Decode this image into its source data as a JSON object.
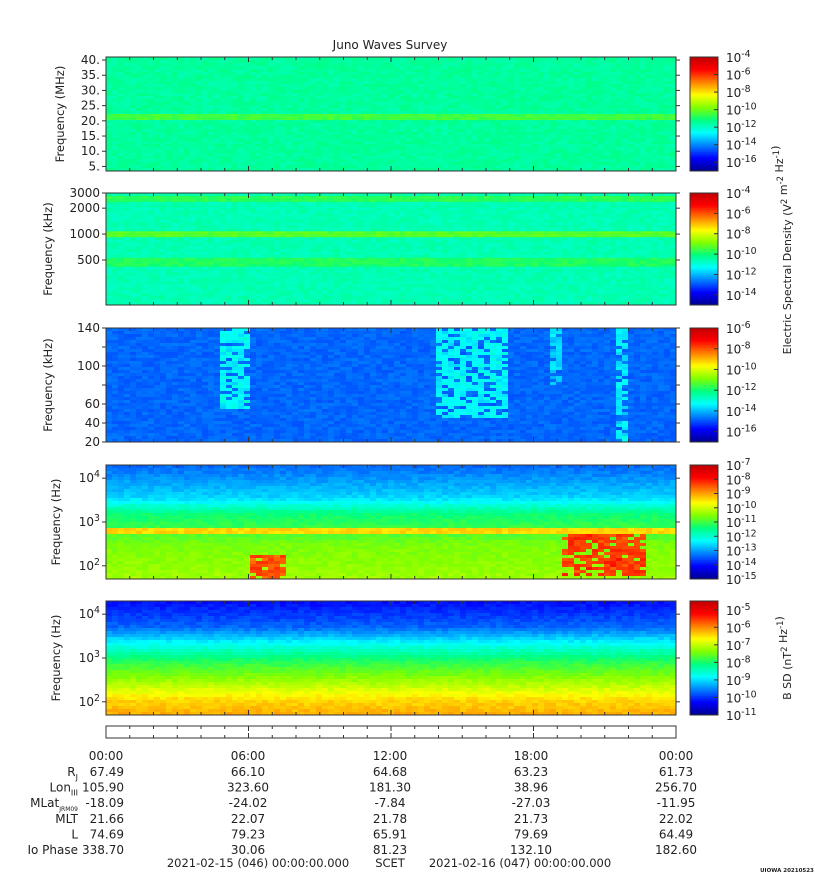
{
  "title": "Juno Waves Survey",
  "colors": {
    "jet": [
      "#00008f",
      "#0000ff",
      "#0080ff",
      "#00ffff",
      "#00ff80",
      "#80ff00",
      "#ffff00",
      "#ff8000",
      "#ff0000",
      "#c00000"
    ]
  },
  "chart_data": [
    {
      "type": "heatmap",
      "ylabel": "Frequency (MHz)",
      "yscale": "linear",
      "ylim": [
        3.5,
        41
      ],
      "yticks": [
        5,
        10,
        15,
        20,
        25,
        30,
        35,
        40
      ],
      "ytick_labels": [
        "5.",
        "10.",
        "15.",
        "20.",
        "25.",
        "30.",
        "35.",
        "40."
      ],
      "colorbar": {
        "scale": "log",
        "exponents": [
          "-4",
          "-6",
          "-8",
          "-10",
          "-12",
          "-14",
          "-16"
        ],
        "range": [
          -17,
          -4
        ]
      },
      "features": [
        {
          "kind": "band",
          "y": 21.5,
          "level": 0.5
        }
      ],
      "background_level": 0.42
    },
    {
      "type": "heatmap",
      "ylabel": "Frequency (kHz)",
      "yscale": "log",
      "ylim": [
        150,
        3000
      ],
      "yticks": [
        500,
        1000,
        2000,
        3000
      ],
      "ytick_labels": [
        "500",
        "1000",
        "2000",
        "3000"
      ],
      "colorbar": {
        "scale": "log",
        "exponents": [
          "-4",
          "-6",
          "-8",
          "-10",
          "-12",
          "-14"
        ],
        "range": [
          -15,
          -4
        ]
      },
      "features": [
        {
          "kind": "band",
          "y": 1000,
          "level": 0.52
        },
        {
          "kind": "band",
          "y": 470,
          "level": 0.47
        },
        {
          "kind": "band",
          "y": 2600,
          "level": 0.48
        }
      ],
      "background_level": 0.4
    },
    {
      "type": "heatmap",
      "ylabel": "Frequency (kHz)",
      "yscale": "linear",
      "ylim": [
        20,
        140
      ],
      "yticks": [
        20,
        40,
        60,
        80,
        100,
        120,
        140
      ],
      "ytick_labels": [
        "20",
        "40",
        "60",
        "",
        "100",
        "",
        "140"
      ],
      "colorbar": {
        "scale": "log",
        "exponents": [
          "-6",
          "-8",
          "-10",
          "-12",
          "-14",
          "-16"
        ],
        "range": [
          -17,
          -6
        ]
      },
      "features": [
        {
          "kind": "burst",
          "t0": 4.8,
          "t1": 6.1,
          "ylow": 55,
          "level": 0.33
        },
        {
          "kind": "burst",
          "t0": 14.0,
          "t1": 16.8,
          "ylow": 45,
          "level": 0.33
        },
        {
          "kind": "burst",
          "t0": 18.7,
          "t1": 19.2,
          "ylow": 80,
          "level": 0.3
        },
        {
          "kind": "burst",
          "t0": 21.4,
          "t1": 21.9,
          "ylow": 20,
          "level": 0.32
        }
      ],
      "background_level": 0.2
    },
    {
      "type": "heatmap",
      "ylabel": "Frequency (Hz)",
      "yscale": "log",
      "ylim": [
        50,
        20000
      ],
      "yticks": [
        100,
        1000,
        10000
      ],
      "ytick_labels": [
        "10^2",
        "10^3",
        "10^4"
      ],
      "colorbar": {
        "scale": "log",
        "exponents": [
          "-7",
          "-8",
          "-9",
          "-10",
          "-11",
          "-12",
          "-13",
          "-14",
          "-15"
        ],
        "range": [
          -15,
          -7
        ]
      },
      "features": [
        {
          "kind": "gradient",
          "stops": [
            [
              20000,
              0.2
            ],
            [
              3500,
              0.3
            ],
            [
              1500,
              0.45
            ],
            [
              300,
              0.55
            ],
            [
              50,
              0.58
            ]
          ]
        },
        {
          "kind": "burst",
          "t0": 6.0,
          "t1": 7.6,
          "ylow": 50,
          "yhigh": 180,
          "level": 0.82
        },
        {
          "kind": "burst",
          "t0": 19.2,
          "t1": 22.8,
          "ylow": 60,
          "yhigh": 500,
          "level": 0.84
        },
        {
          "kind": "band",
          "y": 620,
          "level": 0.7
        }
      ],
      "background_level": 0.5
    },
    {
      "type": "heatmap",
      "ylabel": "Frequency (Hz)",
      "yscale": "log",
      "ylim": [
        50,
        20000
      ],
      "yticks": [
        100,
        1000,
        10000
      ],
      "ytick_labels": [
        "10^2",
        "10^3",
        "10^4"
      ],
      "colorbar": {
        "scale": "log",
        "exponents": [
          "-5",
          "-6",
          "-7",
          "-8",
          "-9",
          "-10",
          "-11"
        ],
        "range": [
          -11,
          -4.5
        ]
      },
      "features": [
        {
          "kind": "gradient",
          "stops": [
            [
              20000,
              0.12
            ],
            [
              5000,
              0.2
            ],
            [
              2000,
              0.35
            ],
            [
              800,
              0.48
            ],
            [
              250,
              0.6
            ],
            [
              110,
              0.7
            ],
            [
              50,
              0.74
            ]
          ]
        }
      ],
      "background_level": 0.45
    }
  ],
  "colorbar_labels": {
    "electric": "Electric Spectral Density (V^2 m^-2 Hz^-1)",
    "magnetic": "B SD (nT^2 Hz^-1)"
  },
  "ephemeris": {
    "time_labels": [
      "00:00",
      "06:00",
      "12:00",
      "18:00",
      "00:00"
    ],
    "rows": [
      {
        "label": "R",
        "sub": "J",
        "values": [
          "67.49",
          "66.10",
          "64.68",
          "63.23",
          "61.73"
        ]
      },
      {
        "label": "Lon",
        "sub": "III",
        "values": [
          "105.90",
          "323.60",
          "181.30",
          "38.96",
          "256.70"
        ]
      },
      {
        "label": "MLat",
        "sub": "JRM09",
        "values": [
          "-18.09",
          "-24.02",
          "-7.84",
          "-27.03",
          "-11.95"
        ]
      },
      {
        "label": "MLT",
        "sub": "",
        "values": [
          "21.66",
          "22.07",
          "21.78",
          "21.73",
          "22.02"
        ]
      },
      {
        "label": "L",
        "sub": "",
        "values": [
          "74.69",
          "79.23",
          "65.91",
          "79.69",
          "64.49"
        ]
      },
      {
        "label": "Io Phase",
        "sub": "",
        "values": [
          "338.70",
          "30.06",
          "81.23",
          "132.10",
          "182.60"
        ]
      }
    ]
  },
  "footer": {
    "start": "2021-02-15 (046) 00:00:00.000",
    "scet": "SCET",
    "end": "2021-02-16 (047) 00:00:00.000",
    "credit": "UIOWA 20210523"
  }
}
